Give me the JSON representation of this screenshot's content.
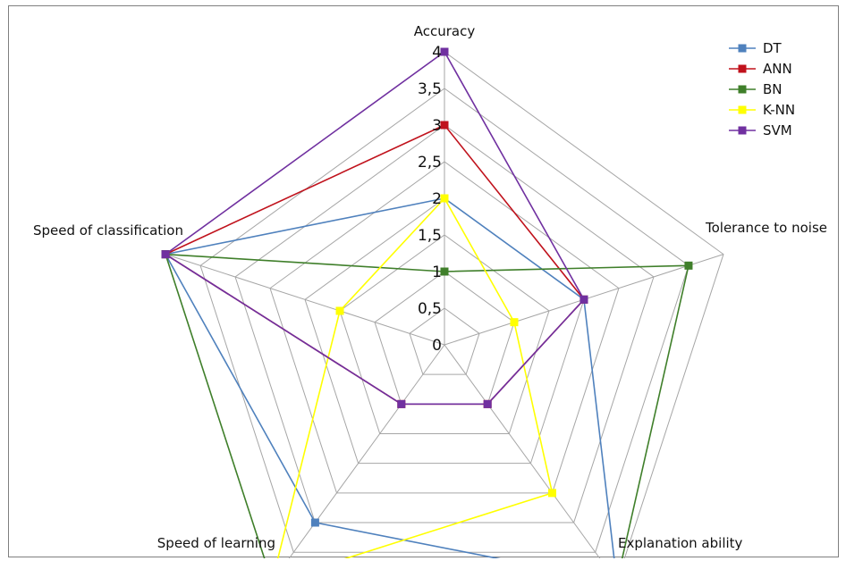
{
  "chart_data": {
    "type": "radar",
    "axes": [
      "Accuracy",
      "Tolerance to noise",
      "Explanation ability",
      "Speed of learning",
      "Speed of classification"
    ],
    "rlim": [
      0,
      4
    ],
    "ticks": [
      0,
      0.5,
      1,
      1.5,
      2,
      2.5,
      3,
      3.5,
      4
    ],
    "tick_labels": [
      "0",
      "0,5",
      "1",
      "1,5",
      "2",
      "2,5",
      "3",
      "3,5",
      "4"
    ],
    "grid": true,
    "legend": "top-right",
    "series": [
      {
        "name": "DT",
        "color": "#4f81bd",
        "values": [
          2,
          2,
          4,
          3,
          4
        ]
      },
      {
        "name": "ANN",
        "color": "#c0121c",
        "values": [
          3,
          2,
          1,
          1,
          4
        ]
      },
      {
        "name": "BN",
        "color": "#3f7f2a",
        "values": [
          1,
          3.5,
          4,
          4,
          4
        ]
      },
      {
        "name": "K-NN",
        "color": "#ffff00",
        "values": [
          2,
          1,
          2.5,
          4,
          1.5
        ]
      },
      {
        "name": "SVM",
        "color": "#7030a0",
        "values": [
          4,
          2,
          1,
          1,
          4
        ]
      }
    ]
  }
}
